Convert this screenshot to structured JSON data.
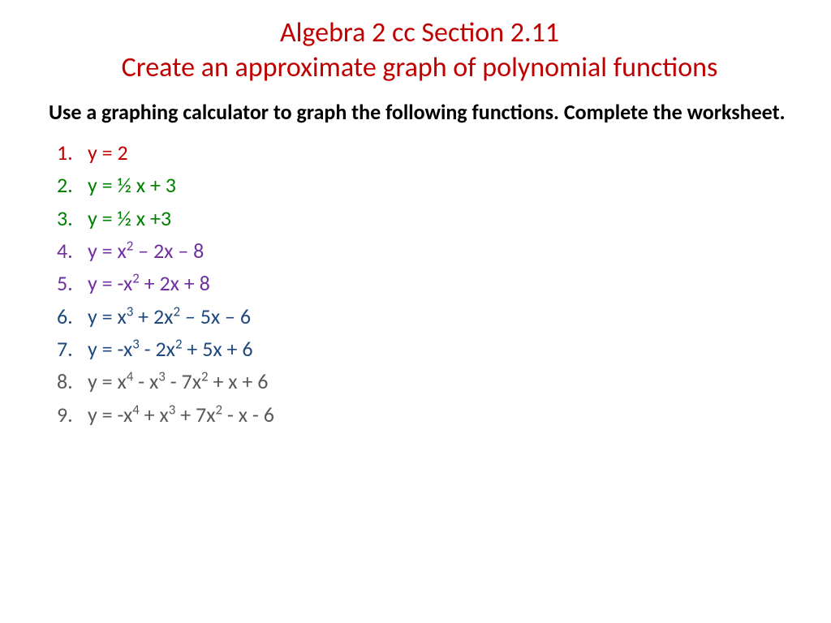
{
  "title": {
    "line1": "Algebra 2 cc  Section 2.11",
    "line2": "Create an approximate graph of polynomial functions",
    "color": "#c00000",
    "fontsize": 34
  },
  "instruction": {
    "text": "Use a graphing calculator to graph the following functions.  Complete the worksheet.",
    "color": "#000000",
    "fontsize": 26,
    "fontweight": "bold"
  },
  "items": [
    {
      "num": "1.",
      "tokens": [
        {
          "t": "y = 2"
        }
      ],
      "color": "#c00000"
    },
    {
      "num": "2.",
      "tokens": [
        {
          "t": "y = ½ x + 3"
        }
      ],
      "color": "#008000"
    },
    {
      "num": "3.",
      "tokens": [
        {
          "t": "y = ½ x +3"
        }
      ],
      "color": "#008000"
    },
    {
      "num": "4.",
      "tokens": [
        {
          "t": "y = x"
        },
        {
          "t": "2",
          "sup": true
        },
        {
          "t": " – 2x – 8"
        }
      ],
      "color": "#7030a0"
    },
    {
      "num": "5.",
      "tokens": [
        {
          "t": "y = -x"
        },
        {
          "t": "2",
          "sup": true
        },
        {
          "t": " + 2x + 8"
        }
      ],
      "color": "#7030a0"
    },
    {
      "num": "6.",
      "tokens": [
        {
          "t": "y = x"
        },
        {
          "t": "3",
          "sup": true
        },
        {
          "t": " + 2x"
        },
        {
          "t": "2",
          "sup": true
        },
        {
          "t": " – 5x – 6"
        }
      ],
      "color": "#1f497d"
    },
    {
      "num": "7.",
      "tokens": [
        {
          "t": "y = -x"
        },
        {
          "t": "3",
          "sup": true
        },
        {
          "t": " - 2x"
        },
        {
          "t": "2",
          "sup": true
        },
        {
          "t": " + 5x + 6"
        }
      ],
      "color": "#1f497d"
    },
    {
      "num": "8.",
      "tokens": [
        {
          "t": "y = x"
        },
        {
          "t": "4",
          "sup": true
        },
        {
          "t": " - x"
        },
        {
          "t": "3",
          "sup": true
        },
        {
          "t": " - 7x"
        },
        {
          "t": "2",
          "sup": true
        },
        {
          "t": " + x + 6"
        }
      ],
      "color": "#595959"
    },
    {
      "num": "9.",
      "tokens": [
        {
          "t": "y = -x"
        },
        {
          "t": "4",
          "sup": true
        },
        {
          "t": " + x"
        },
        {
          "t": "3",
          "sup": true
        },
        {
          "t": " + 7x"
        },
        {
          "t": "2",
          "sup": true
        },
        {
          "t": " - x - 6"
        }
      ],
      "color": "#595959"
    }
  ],
  "list_fontsize": 26,
  "background_color": "#ffffff"
}
